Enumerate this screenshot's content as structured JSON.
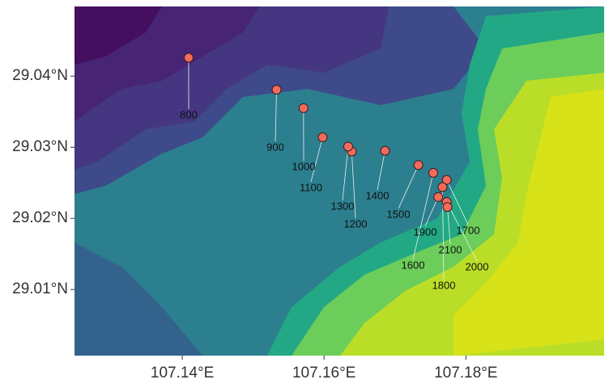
{
  "chart_data": {
    "type": "scatter",
    "x": [
      107.1409,
      107.1533,
      107.1571,
      107.1598,
      107.1639,
      107.1634,
      107.1686,
      107.1733,
      107.1754,
      107.1773,
      107.1767,
      107.1761,
      107.1773,
      107.1774
    ],
    "values": [
      29.0426,
      29.0381,
      29.0355,
      29.0314,
      29.0294,
      29.0301,
      29.0295,
      29.0275,
      29.0264,
      29.0254,
      29.0244,
      29.023,
      29.0223,
      29.0216
    ],
    "point_labels": [
      "800",
      "900",
      "1000",
      "1100",
      "1200",
      "1300",
      "1400",
      "1500",
      "1600",
      "1700",
      "1800",
      "1900",
      "2000",
      "2100"
    ],
    "color": "#f26b5b",
    "xlim": [
      107.1248,
      107.1995
    ],
    "ylim": [
      29.0007,
      29.0498
    ],
    "xticks": [
      {
        "value": 107.14,
        "label": "107.14°E"
      },
      {
        "value": 107.16,
        "label": "107.16°E"
      },
      {
        "value": 107.18,
        "label": "107.18°E"
      }
    ],
    "yticks": [
      {
        "value": 29.01,
        "label": "29.01°N"
      },
      {
        "value": 29.02,
        "label": "29.02°N"
      },
      {
        "value": 29.03,
        "label": "29.03°N"
      },
      {
        "value": 29.04,
        "label": "29.04°N"
      }
    ]
  }
}
